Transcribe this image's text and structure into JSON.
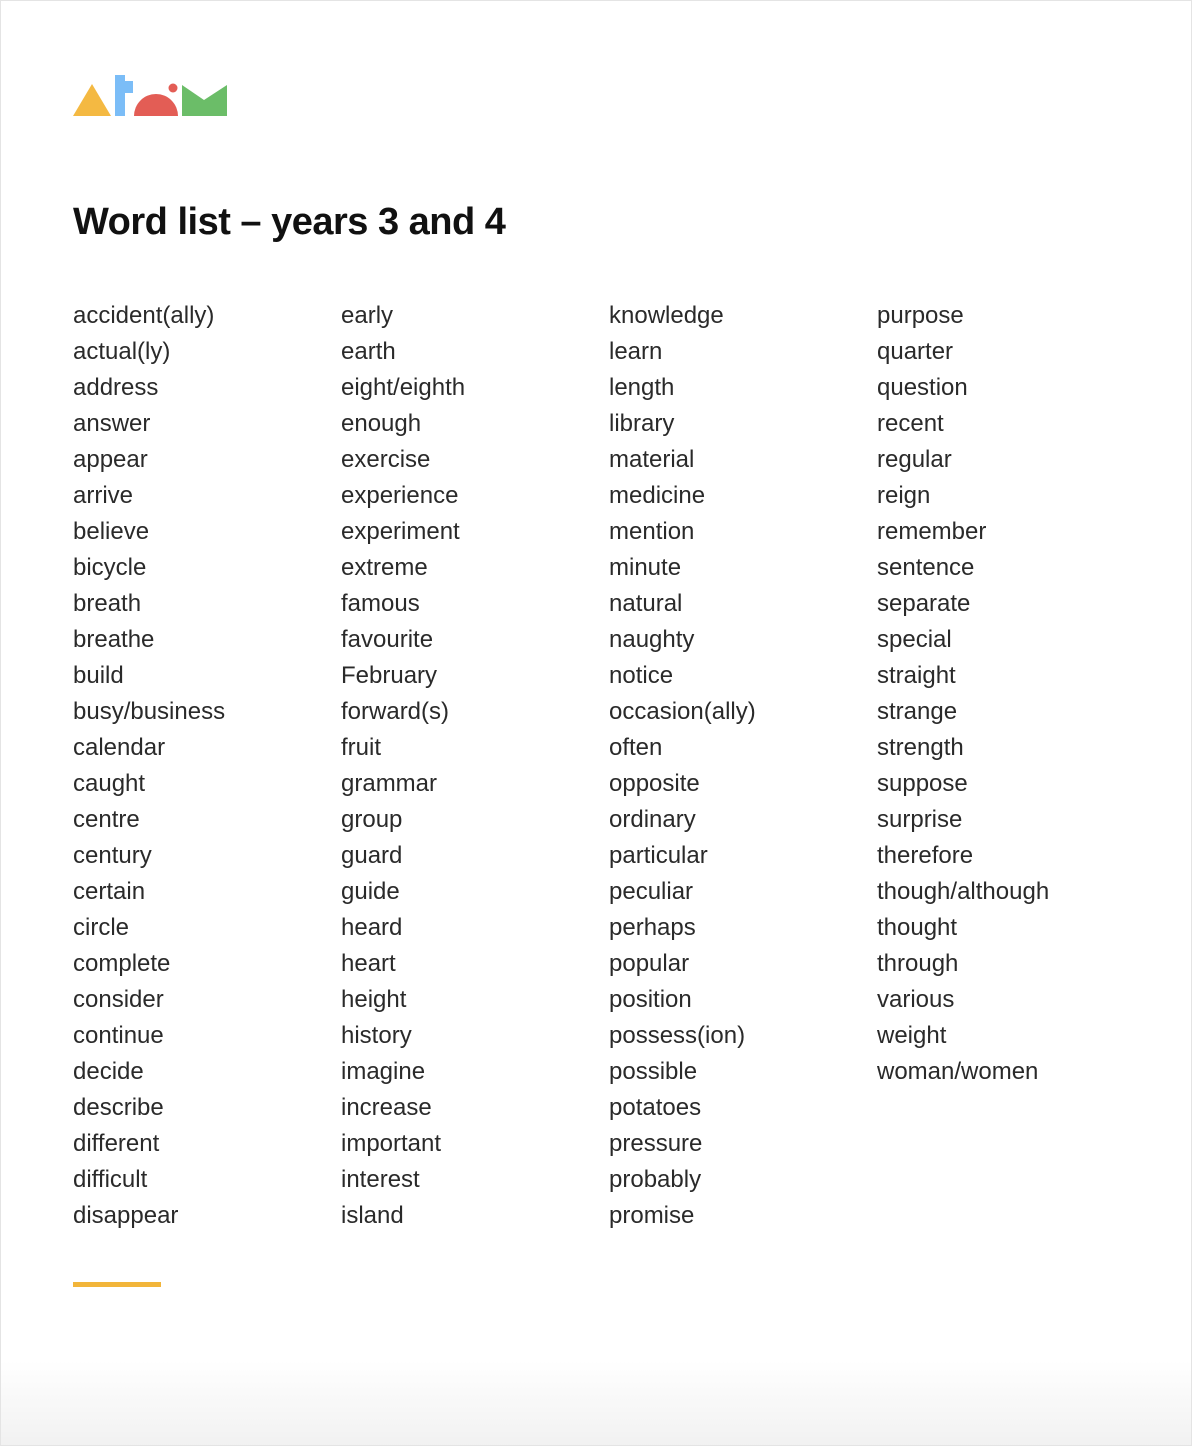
{
  "logo": {
    "alt_text": "Atom",
    "colors": [
      "#f4b942",
      "#7bbdf7",
      "#e35d55",
      "#6bbd68"
    ]
  },
  "title": "Word list – years 3 and 4",
  "columns": [
    [
      "accident(ally)",
      "actual(ly)",
      "address",
      "answer",
      "appear",
      "arrive",
      "believe",
      "bicycle",
      "breath",
      "breathe",
      "build",
      "busy/business",
      "calendar",
      "caught",
      "centre",
      "century",
      "certain",
      "circle",
      "complete",
      "consider",
      "continue",
      "decide",
      "describe",
      "different",
      "difficult",
      "disappear"
    ],
    [
      "early",
      "earth",
      "eight/eighth",
      "enough",
      "exercise",
      "experience",
      "experiment",
      "extreme",
      "famous",
      "favourite",
      "February",
      "forward(s)",
      "fruit",
      "grammar",
      "group",
      "guard",
      "guide",
      "heard",
      "heart",
      "height",
      "history",
      "imagine",
      "increase",
      "important",
      "interest",
      "island"
    ],
    [
      "knowledge",
      "learn",
      "length",
      "library",
      "material",
      "medicine",
      "mention",
      "minute",
      "natural",
      "naughty",
      "notice",
      "occasion(ally)",
      "often",
      "opposite",
      "ordinary",
      "particular",
      "peculiar",
      "perhaps",
      "popular",
      "position",
      "possess(ion)",
      "possible",
      "potatoes",
      "pressure",
      "probably",
      "promise"
    ],
    [
      "purpose",
      "quarter",
      "question",
      "recent",
      "regular",
      "reign",
      "remember",
      "sentence",
      "separate",
      "special",
      "straight",
      "strange",
      "strength",
      "suppose",
      "surprise",
      "therefore",
      "though/although",
      "thought",
      "through",
      "various",
      "weight",
      "woman/women"
    ]
  ],
  "accent_color": "#f2b53a"
}
